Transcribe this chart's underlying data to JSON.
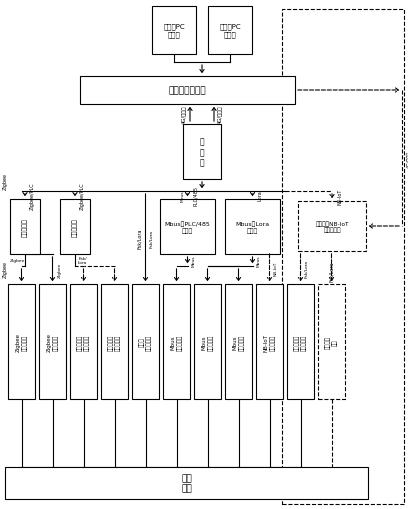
{
  "bg": "#ffffff",
  "client1": "云利捷PC\n客户端",
  "client2": "云利捷PC\n客户端",
  "server": "供客采集服务器",
  "gateway": "集\n中\n器",
  "relay1": "采集中继器",
  "relay2": "采集中继器",
  "relay3": "Mbus转PLC/485\n中继器",
  "relay4": "Mbus转Lora\n中继器",
  "nb_box": "低功率带NB-IoT\n信号转接器",
  "dev_labels": [
    "Zigbee\n图像采集器",
    "Zigbee\n图像采集器",
    "低功率无线\n图像采集器",
    "低功率无线\n图像采集器",
    "低功率\n图像采集器",
    "Mbus\n图像采集器",
    "Mbus\n图像采集器",
    "Mbus\n图像采集器",
    "NB-IoT\n图像采集器",
    "低功率无线\n图像采集器",
    "移动采集\n装置"
  ],
  "bottom": "现场\n仪表",
  "label_zigbee": "Zigbee",
  "label_zigbee_plc1": "Zigbee/PLC",
  "label_zigbee_plc2": "Zigbee/PLC",
  "label_fsk_lora": "Fsk/Lora",
  "label_plc485": "PLC/485",
  "label_lora": "Lora",
  "label_mbus1": "Mbus",
  "label_mbus2": "Mbus",
  "label_mbus3": "Mbus",
  "label_nb_iot_line": "NB-IoT",
  "label_nb_iot2": "NB-IoT",
  "label_fsk_lora2": "Fsk/Lora",
  "label_4g_left": "4G/以太网",
  "label_4g_right": "4G/以太网",
  "label_4g_far": "4G/以太网"
}
